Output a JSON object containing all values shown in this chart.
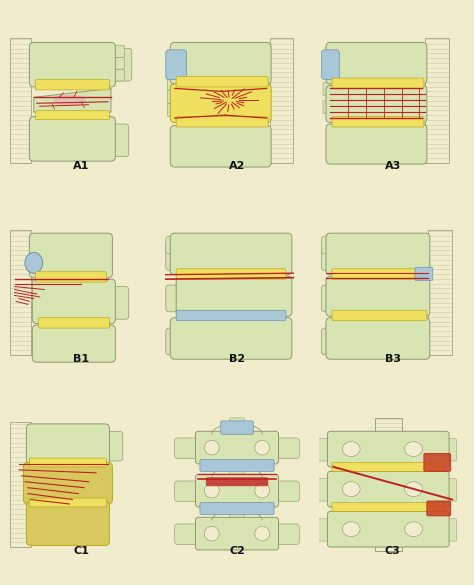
{
  "background_color": "#f0eccc",
  "panel_bg": "#f0eccc",
  "labels": [
    "A1",
    "A2",
    "A3",
    "B1",
    "B2",
    "B3",
    "C1",
    "C2",
    "C3"
  ],
  "bone_body": "#d8e4b2",
  "bone_mid": "#c8d8a0",
  "bone_outline": "#909870",
  "bone_process": "#d0dca8",
  "disc_yellow": "#f0e060",
  "disc_outline": "#b8a820",
  "disc_blue": "#a8c8d8",
  "disc_blue_outline": "#7090a8",
  "fracture_red": "#c02020",
  "stripe_color": "#c4cca4",
  "posterior_fill": "#d4dcac",
  "label_size": 8,
  "shadow_tan": "#d4c060",
  "highlight_pink": "#e8b0b0"
}
